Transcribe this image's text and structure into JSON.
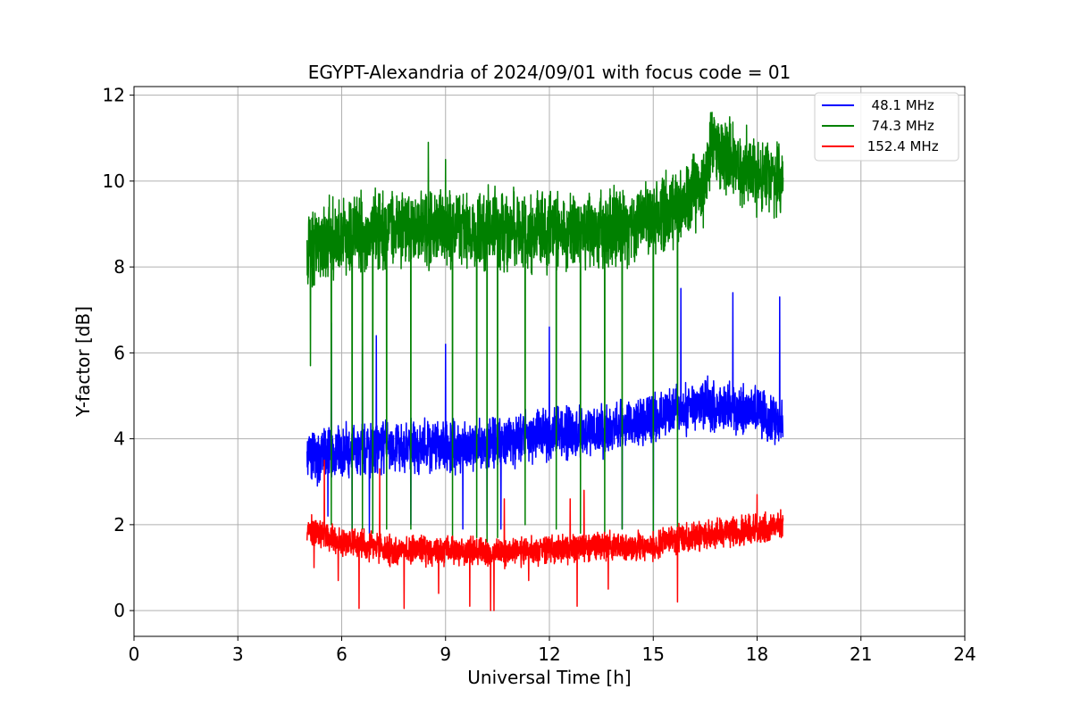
{
  "chart_data": {
    "type": "line",
    "title": "EGYPT-Alexandria of 2024/09/01 with focus code = 01",
    "xlabel": "Universal Time [h]",
    "ylabel": "Y-factor [dB]",
    "xlim": [
      0,
      24
    ],
    "ylim": [
      -0.6,
      12.2
    ],
    "xticks": [
      0,
      3,
      6,
      9,
      12,
      15,
      18,
      21,
      24
    ],
    "xtick_labels": [
      "0",
      "3",
      "6",
      "9",
      "12",
      "15",
      "18",
      "21",
      "24"
    ],
    "yticks": [
      0,
      2,
      4,
      6,
      8,
      10,
      12
    ],
    "ytick_labels": [
      "0",
      "2",
      "4",
      "6",
      "8",
      "10",
      "12"
    ],
    "grid": true,
    "legend_position": "top-right",
    "time_range": [
      5.0,
      18.75
    ],
    "series": [
      {
        "name": "48.1 MHz",
        "legend_label": "  48.1 MHz",
        "color": "#0000ff",
        "trend": [
          [
            5.0,
            3.6
          ],
          [
            6.0,
            3.7
          ],
          [
            7.5,
            3.8
          ],
          [
            9.0,
            3.8
          ],
          [
            10.5,
            3.9
          ],
          [
            12.0,
            4.1
          ],
          [
            13.5,
            4.2
          ],
          [
            15.0,
            4.5
          ],
          [
            16.5,
            4.8
          ],
          [
            18.0,
            4.6
          ],
          [
            18.75,
            4.4
          ]
        ],
        "noise_amplitude": 0.7,
        "dropouts": [
          [
            5.3,
            2.9
          ],
          [
            5.6,
            2.2
          ],
          [
            6.3,
            1.7
          ],
          [
            6.8,
            1.8
          ],
          [
            8.0,
            2.0
          ],
          [
            9.5,
            1.9
          ],
          [
            10.2,
            2.0
          ],
          [
            10.6,
            1.9
          ],
          [
            14.1,
            1.9
          ],
          [
            15.0,
            1.6
          ]
        ],
        "spikes": [
          [
            5.7,
            6.7
          ],
          [
            6.6,
            6.7
          ],
          [
            7.0,
            6.4
          ],
          [
            9.0,
            6.2
          ],
          [
            12.0,
            6.6
          ],
          [
            15.8,
            7.5
          ],
          [
            17.3,
            7.4
          ],
          [
            18.65,
            7.3
          ]
        ]
      },
      {
        "name": "74.3 MHz",
        "legend_label": "  74.3 MHz",
        "color": "#008000",
        "trend": [
          [
            5.0,
            8.5
          ],
          [
            6.0,
            8.7
          ],
          [
            7.5,
            8.9
          ],
          [
            9.0,
            8.9
          ],
          [
            10.5,
            8.9
          ],
          [
            12.0,
            8.8
          ],
          [
            13.5,
            8.9
          ],
          [
            15.0,
            9.1
          ],
          [
            15.8,
            9.4
          ],
          [
            16.5,
            9.9
          ],
          [
            16.7,
            10.9
          ],
          [
            17.5,
            10.3
          ],
          [
            18.75,
            10.0
          ]
        ],
        "noise_amplitude": 1.1,
        "dropouts": [
          [
            5.1,
            5.7
          ],
          [
            5.7,
            2.0
          ],
          [
            6.3,
            1.8
          ],
          [
            6.6,
            1.9
          ],
          [
            6.9,
            1.8
          ],
          [
            7.3,
            1.9
          ],
          [
            8.0,
            1.9
          ],
          [
            8.5,
            1.8
          ],
          [
            9.2,
            1.6
          ],
          [
            9.9,
            1.7
          ],
          [
            10.2,
            1.6
          ],
          [
            10.5,
            1.7
          ],
          [
            11.3,
            2.0
          ],
          [
            12.2,
            1.9
          ],
          [
            12.9,
            1.8
          ],
          [
            13.6,
            1.8
          ],
          [
            14.1,
            1.9
          ],
          [
            15.0,
            1.7
          ],
          [
            15.7,
            1.6
          ]
        ],
        "spikes": [
          [
            8.5,
            10.9
          ],
          [
            9.0,
            10.5
          ],
          [
            16.7,
            11.6
          ],
          [
            17.2,
            11.3
          ]
        ]
      },
      {
        "name": "152.4 MHz",
        "legend_label": " 152.4 MHz",
        "color": "#ff0000",
        "trend": [
          [
            5.0,
            1.9
          ],
          [
            6.0,
            1.6
          ],
          [
            7.5,
            1.4
          ],
          [
            9.0,
            1.4
          ],
          [
            10.5,
            1.35
          ],
          [
            12.0,
            1.4
          ],
          [
            13.5,
            1.5
          ],
          [
            15.0,
            1.5
          ],
          [
            15.8,
            1.7
          ],
          [
            17.0,
            1.8
          ],
          [
            18.0,
            1.9
          ],
          [
            18.75,
            2.0
          ]
        ],
        "noise_amplitude": 0.4,
        "dropouts": [
          [
            5.2,
            1.0
          ],
          [
            5.9,
            0.7
          ],
          [
            6.5,
            0.05
          ],
          [
            7.1,
            0.5
          ],
          [
            7.8,
            0.05
          ],
          [
            8.8,
            0.4
          ],
          [
            9.7,
            0.1
          ],
          [
            10.3,
            0.0
          ],
          [
            10.4,
            0.0
          ],
          [
            11.4,
            0.7
          ],
          [
            12.8,
            0.1
          ],
          [
            13.7,
            0.5
          ],
          [
            15.7,
            0.2
          ]
        ],
        "spikes": [
          [
            5.5,
            3.5
          ],
          [
            7.1,
            3.3
          ],
          [
            10.7,
            2.6
          ],
          [
            12.6,
            2.6
          ],
          [
            13.0,
            2.8
          ],
          [
            18.0,
            2.7
          ]
        ]
      }
    ]
  }
}
